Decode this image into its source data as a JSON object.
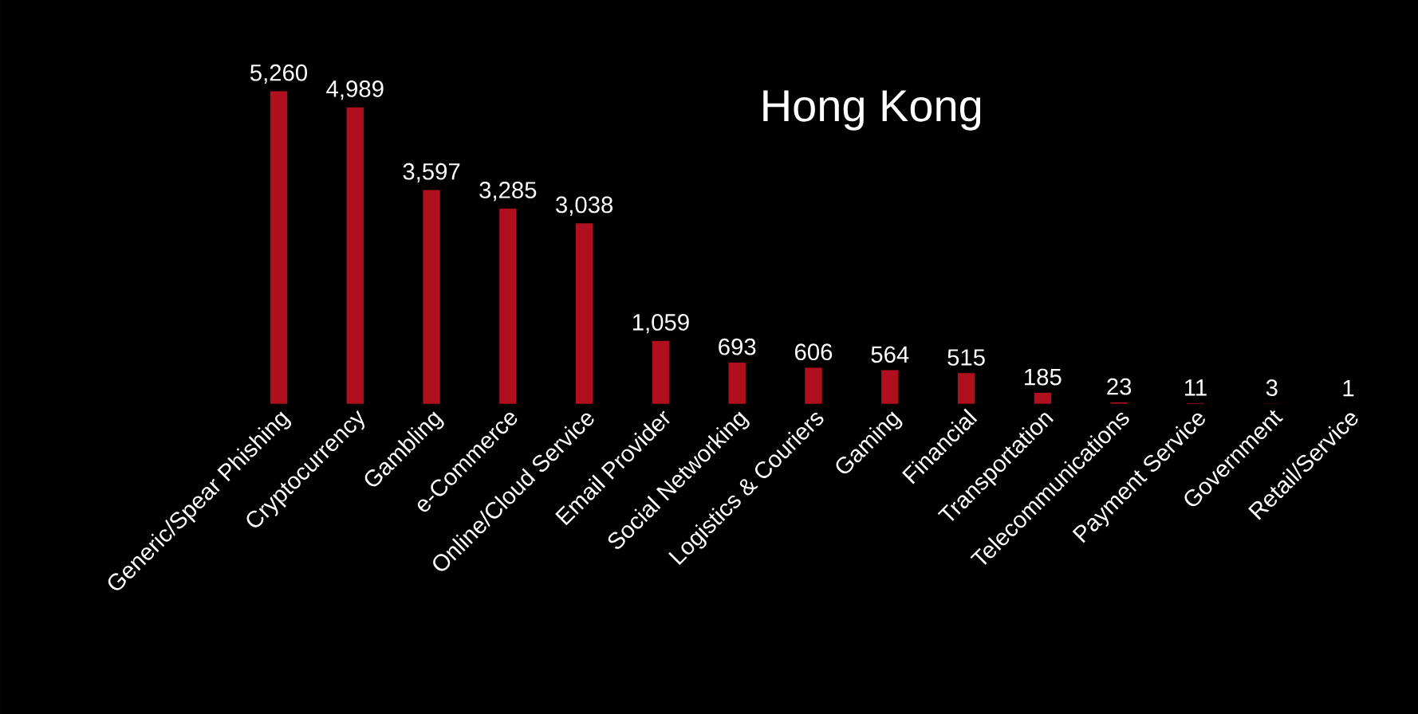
{
  "chart_data": {
    "type": "bar",
    "title": "Hong Kong",
    "categories": [
      "Generic/Spear Phishing",
      "Cryptocurrency",
      "Gambling",
      "e-Commerce",
      "Online/Cloud Service",
      "Email Provider",
      "Social Networking",
      "Logistics & Couriers",
      "Gaming",
      "Financial",
      "Transportation",
      "Telecommunications",
      "Payment Service",
      "Government",
      "Retail/Service"
    ],
    "values": [
      5260,
      4989,
      3597,
      3285,
      3038,
      1059,
      693,
      606,
      564,
      515,
      185,
      23,
      11,
      3,
      1
    ],
    "value_labels": [
      "5,260",
      "4,989",
      "3,597",
      "3,285",
      "3,038",
      "1,059",
      "693",
      "606",
      "564",
      "515",
      "185",
      "23",
      "11",
      "3",
      "1"
    ],
    "color": "#b0101e"
  }
}
